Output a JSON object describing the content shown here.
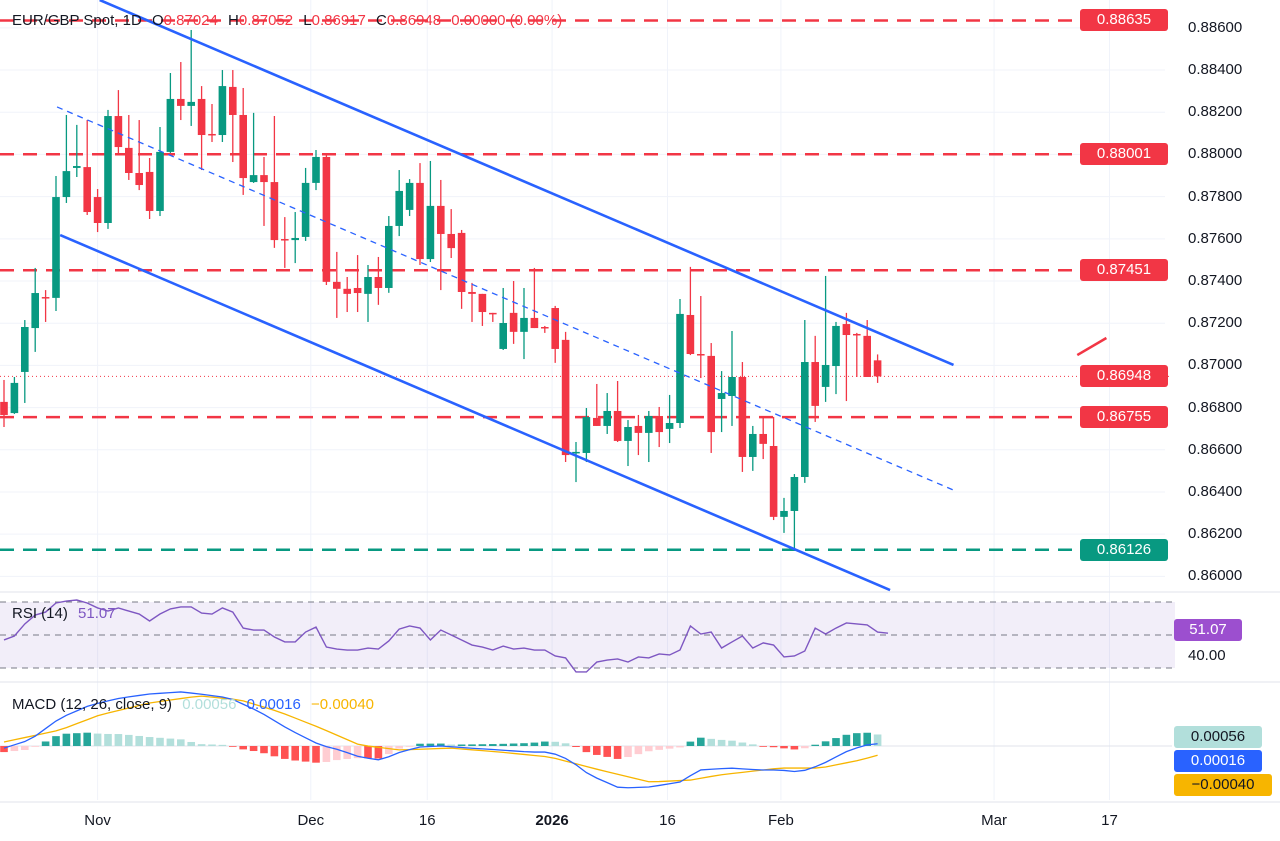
{
  "header": {
    "symbol": "EUR/GBP Spot, 1D",
    "o_label": "O",
    "o": "0.87024",
    "h_label": "H",
    "h": "0.87052",
    "l_label": "L",
    "l": "0.86917",
    "c_label": "C",
    "c": "0.86948",
    "change": "0.00000 (0.00%)"
  },
  "colors": {
    "up": "#089981",
    "down": "#f23645",
    "channel": "#2962ff",
    "rsi": "#7e57c2",
    "macd": "#2962ff",
    "signal": "#f7b500"
  },
  "chart_data": [
    {
      "type": "candlestick",
      "title": "EUR/GBP Spot, 1D",
      "ylim": [
        0.8593,
        0.8873
      ],
      "y_ticks": [
        "0.86000",
        "0.86200",
        "0.86400",
        "0.86600",
        "0.86800",
        "0.87000",
        "0.87200",
        "0.87400",
        "0.87600",
        "0.87800",
        "0.88000",
        "0.88200",
        "0.88400",
        "0.88600"
      ],
      "x_ticks": [
        {
          "label": "Nov",
          "bar": 9
        },
        {
          "label": "Dec",
          "bar": 29.5
        },
        {
          "label": "16",
          "bar": 40.7
        },
        {
          "label": "2026",
          "bar": 52.7,
          "bold": true
        },
        {
          "label": "16",
          "bar": 63.8
        },
        {
          "label": "Feb",
          "bar": 74.7
        },
        {
          "label": "Mar",
          "bar": 95.2
        },
        {
          "label": "17",
          "bar": 106.3
        }
      ],
      "grid": true,
      "ohlc": [
        [
          0.86827,
          0.86931,
          0.86708,
          0.86765
        ],
        [
          0.86774,
          0.86945,
          0.8677,
          0.86917
        ],
        [
          0.86969,
          0.87215,
          0.86822,
          0.87182
        ],
        [
          0.87177,
          0.87462,
          0.87064,
          0.87343
        ],
        [
          0.87324,
          0.87357,
          0.87206,
          0.8732
        ],
        [
          0.8732,
          0.87898,
          0.87258,
          0.87798
        ],
        [
          0.87798,
          0.88187,
          0.8777,
          0.87921
        ],
        [
          0.87936,
          0.8814,
          0.87893,
          0.87945
        ],
        [
          0.8794,
          0.88163,
          0.87713,
          0.87727
        ],
        [
          0.87798,
          0.87836,
          0.87632,
          0.87675
        ],
        [
          0.87675,
          0.88211,
          0.87647,
          0.88182
        ],
        [
          0.88182,
          0.88305,
          0.87997,
          0.88035
        ],
        [
          0.88031,
          0.88187,
          0.87879,
          0.87912
        ],
        [
          0.87912,
          0.88163,
          0.87831,
          0.87855
        ],
        [
          0.87917,
          0.87983,
          0.87694,
          0.87732
        ],
        [
          0.87732,
          0.8813,
          0.87708,
          0.88012
        ],
        [
          0.88012,
          0.88386,
          0.88007,
          0.88263
        ],
        [
          0.88263,
          0.88438,
          0.88163,
          0.8823
        ],
        [
          0.8823,
          0.8859,
          0.88135,
          0.88249
        ],
        [
          0.88263,
          0.88324,
          0.87926,
          0.88092
        ],
        [
          0.88097,
          0.88239,
          0.88059,
          0.88092
        ],
        [
          0.88092,
          0.884,
          0.88059,
          0.88324
        ],
        [
          0.8832,
          0.884,
          0.87964,
          0.88187
        ],
        [
          0.88187,
          0.88315,
          0.87808,
          0.87888
        ],
        [
          0.87869,
          0.88197,
          0.87865,
          0.87902
        ],
        [
          0.87902,
          0.87988,
          0.87661,
          0.87869
        ],
        [
          0.87869,
          0.88182,
          0.87557,
          0.87594
        ],
        [
          0.87599,
          0.87703,
          0.87462,
          0.87596
        ],
        [
          0.87594,
          0.87727,
          0.87485,
          0.87604
        ],
        [
          0.87609,
          0.87936,
          0.8759,
          0.87865
        ],
        [
          0.87865,
          0.88021,
          0.87831,
          0.87988
        ],
        [
          0.87988,
          0.88007,
          0.87381,
          0.87396
        ],
        [
          0.87396,
          0.87538,
          0.87225,
          0.87363
        ],
        [
          0.87363,
          0.87419,
          0.87253,
          0.87339
        ],
        [
          0.87367,
          0.87523,
          0.87253,
          0.87343
        ],
        [
          0.87339,
          0.87476,
          0.87206,
          0.87419
        ],
        [
          0.87419,
          0.87514,
          0.87287,
          0.87367
        ],
        [
          0.87367,
          0.87708,
          0.87344,
          0.87661
        ],
        [
          0.87661,
          0.87926,
          0.87613,
          0.87827
        ],
        [
          0.87737,
          0.87883,
          0.87708,
          0.87865
        ],
        [
          0.87865,
          0.87959,
          0.87476,
          0.87504
        ],
        [
          0.87504,
          0.87969,
          0.8749,
          0.87756
        ],
        [
          0.87756,
          0.87879,
          0.87357,
          0.87623
        ],
        [
          0.87623,
          0.87741,
          0.87509,
          0.87556
        ],
        [
          0.87628,
          0.87642,
          0.87268,
          0.87348
        ],
        [
          0.87348,
          0.87391,
          0.87206,
          0.87339
        ],
        [
          0.87339,
          0.87339,
          0.87187,
          0.87253
        ],
        [
          0.87249,
          0.87249,
          0.87206,
          0.87244
        ],
        [
          0.87078,
          0.87367,
          0.87073,
          0.87201
        ],
        [
          0.87249,
          0.874,
          0.87102,
          0.87159
        ],
        [
          0.87159,
          0.87367,
          0.8703,
          0.87225
        ],
        [
          0.87225,
          0.87462,
          0.87177,
          0.87177
        ],
        [
          0.87182,
          0.87187,
          0.87154,
          0.87177
        ],
        [
          0.87272,
          0.87282,
          0.87012,
          0.87078
        ],
        [
          0.87121,
          0.87159,
          0.86542,
          0.86575
        ],
        [
          0.86585,
          0.86637,
          0.86447,
          0.8659
        ],
        [
          0.86585,
          0.86798,
          0.86542,
          0.86755
        ],
        [
          0.86751,
          0.86912,
          0.86713,
          0.86713
        ],
        [
          0.86713,
          0.86869,
          0.86675,
          0.86784
        ],
        [
          0.86784,
          0.86926,
          0.86637,
          0.86642
        ],
        [
          0.86642,
          0.86741,
          0.86523,
          0.86708
        ],
        [
          0.86713,
          0.86765,
          0.86575,
          0.8668
        ],
        [
          0.8668,
          0.86784,
          0.86542,
          0.8676
        ],
        [
          0.8676,
          0.86803,
          0.86613,
          0.86684
        ],
        [
          0.86699,
          0.8686,
          0.86632,
          0.86727
        ],
        [
          0.86727,
          0.87315,
          0.86703,
          0.87244
        ],
        [
          0.87239,
          0.87467,
          0.87049,
          0.87054
        ],
        [
          0.87054,
          0.87329,
          0.8694,
          0.87049
        ],
        [
          0.87045,
          0.87106,
          0.86585,
          0.86684
        ],
        [
          0.86841,
          0.86973,
          0.86684,
          0.86869
        ],
        [
          0.86855,
          0.87163,
          0.86713,
          0.86945
        ],
        [
          0.86945,
          0.87016,
          0.86495,
          0.86566
        ],
        [
          0.86566,
          0.86713,
          0.865,
          0.86675
        ],
        [
          0.86675,
          0.8676,
          0.86556,
          0.86628
        ],
        [
          0.86618,
          0.86756,
          0.86267,
          0.86282
        ],
        [
          0.86282,
          0.86372,
          0.86206,
          0.8631
        ],
        [
          0.8631,
          0.86485,
          0.86125,
          0.86471
        ],
        [
          0.86471,
          0.87215,
          0.86443,
          0.87016
        ],
        [
          0.87016,
          0.8714,
          0.86732,
          0.86808
        ],
        [
          0.86898,
          0.87424,
          0.86827,
          0.87002
        ],
        [
          0.86997,
          0.87206,
          0.86864,
          0.87187
        ],
        [
          0.87196,
          0.87249,
          0.86831,
          0.87144
        ],
        [
          0.87149,
          0.87154,
          0.86945,
          0.87144
        ],
        [
          0.8714,
          0.87215,
          0.86945,
          0.86945
        ],
        [
          0.87024,
          0.87052,
          0.86917,
          0.86948
        ]
      ],
      "levels": [
        {
          "value": "0.88635",
          "price": 0.88635,
          "color": "#f23645"
        },
        {
          "value": "0.88001",
          "price": 0.88001,
          "color": "#f23645"
        },
        {
          "value": "0.87451",
          "price": 0.87451,
          "color": "#f23645"
        },
        {
          "value": "0.86755",
          "price": 0.86755,
          "color": "#f23645"
        },
        {
          "value": "0.86126",
          "price": 0.86126,
          "color": "#089981"
        }
      ],
      "last_price": {
        "value": "0.86948",
        "price": 0.86948
      },
      "trendlines": [
        {
          "kind": "channel-upper",
          "from": [
            9.2,
            0.88732
          ],
          "to": [
            91.3,
            0.87002
          ],
          "style": "solid"
        },
        {
          "kind": "channel-lower",
          "from": [
            5.4,
            0.87618
          ],
          "to": [
            85.2,
            0.85935
          ],
          "style": "solid"
        },
        {
          "kind": "channel-mid",
          "from": [
            5.1,
            0.88225
          ],
          "to": [
            91.3,
            0.86409
          ],
          "style": "dashed"
        },
        {
          "kind": "arrow-stub",
          "from": [
            103.2,
            0.87049
          ],
          "to": [
            106.0,
            0.8713
          ],
          "style": "solid",
          "color": "#f23645"
        }
      ]
    },
    {
      "type": "line",
      "title": "RSI (14)",
      "value_label": "51.07",
      "band": [
        30,
        70
      ],
      "mid": 50,
      "axis_label": "40.00",
      "values": [
        47.0,
        49.4,
        56.7,
        62.1,
        63.9,
        69.4,
        70.6,
        71.2,
        69.4,
        66.4,
        64.5,
        66.4,
        64.5,
        62.7,
        58.5,
        62.7,
        65.8,
        67.0,
        67.0,
        63.3,
        62.7,
        66.4,
        63.9,
        54.2,
        53.0,
        53.0,
        48.8,
        45.8,
        45.8,
        51.8,
        54.8,
        42.7,
        41.5,
        40.9,
        40.9,
        42.1,
        41.5,
        46.4,
        53.6,
        55.5,
        54.2,
        47.0,
        53.0,
        50.0,
        47.0,
        43.9,
        42.7,
        40.9,
        43.3,
        41.5,
        42.1,
        40.9,
        40.9,
        37.3,
        36.1,
        27.6,
        27.6,
        33.6,
        34.8,
        35.5,
        33.6,
        36.7,
        36.1,
        38.5,
        37.9,
        40.9,
        55.5,
        50.6,
        51.8,
        42.1,
        45.8,
        49.4,
        42.1,
        45.2,
        43.9,
        36.7,
        37.3,
        40.3,
        54.2,
        50.6,
        54.2,
        57.3,
        56.7,
        56.1,
        51.8,
        51.07
      ]
    },
    {
      "type": "line",
      "title": "MACD (12, 26, close, 9)",
      "hist_label": "0.00056",
      "macd_label": "0.00016",
      "signal_label": "−0.00040",
      "macd": [
        [
          0,
          -0.00013
        ],
        [
          2.5,
          0.00038
        ],
        [
          5.4,
          0.00175
        ],
        [
          8.3,
          0.00256
        ],
        [
          11.2,
          0.003
        ],
        [
          14,
          0.00325
        ],
        [
          17,
          0.00338
        ],
        [
          18.8,
          0.00325
        ],
        [
          21.7,
          0.003
        ],
        [
          24.6,
          0.00213
        ],
        [
          27.5,
          0.001
        ],
        [
          30.4,
          6e-05
        ],
        [
          32.3,
          -0.00025
        ],
        [
          34.2,
          -0.00069
        ],
        [
          36.2,
          -0.00088
        ],
        [
          38.1,
          -0.00038
        ],
        [
          40,
          -6e-05
        ],
        [
          42,
          0.0
        ],
        [
          44.8,
          -0.00013
        ],
        [
          47.7,
          -0.00025
        ],
        [
          50.6,
          -0.00038
        ],
        [
          52.5,
          -0.00038
        ],
        [
          54.4,
          -0.00088
        ],
        [
          56.3,
          -0.00181
        ],
        [
          59.2,
          -0.00263
        ],
        [
          62.1,
          -0.00256
        ],
        [
          65,
          -0.00225
        ],
        [
          66.9,
          -0.0015
        ],
        [
          69.8,
          -0.00138
        ],
        [
          72.7,
          -0.0015
        ],
        [
          74.6,
          -0.0015
        ],
        [
          76.5,
          -0.00163
        ],
        [
          78.5,
          -0.00119
        ],
        [
          81.3,
          -0.00025
        ],
        [
          83.3,
          0.00013
        ],
        [
          85,
          0.00016
        ]
      ],
      "signal": [
        [
          0,
          0.00025
        ],
        [
          5.4,
          0.001
        ],
        [
          9.2,
          0.00194
        ],
        [
          14,
          0.00269
        ],
        [
          18.8,
          0.00313
        ],
        [
          22.7,
          0.00288
        ],
        [
          26.5,
          0.00213
        ],
        [
          30.4,
          0.00113
        ],
        [
          34.2,
          6e-05
        ],
        [
          38.1,
          -0.00025
        ],
        [
          42.9,
          -0.00013
        ],
        [
          47.7,
          -0.00038
        ],
        [
          52.5,
          -0.00069
        ],
        [
          57.3,
          -0.0015
        ],
        [
          62.1,
          -0.00225
        ],
        [
          66,
          -0.00213
        ],
        [
          68.8,
          -0.00181
        ],
        [
          74.6,
          -0.00138
        ],
        [
          78.5,
          -0.00138
        ],
        [
          82.3,
          -0.00088
        ],
        [
          85,
          -0.0004
        ]
      ]
    }
  ]
}
